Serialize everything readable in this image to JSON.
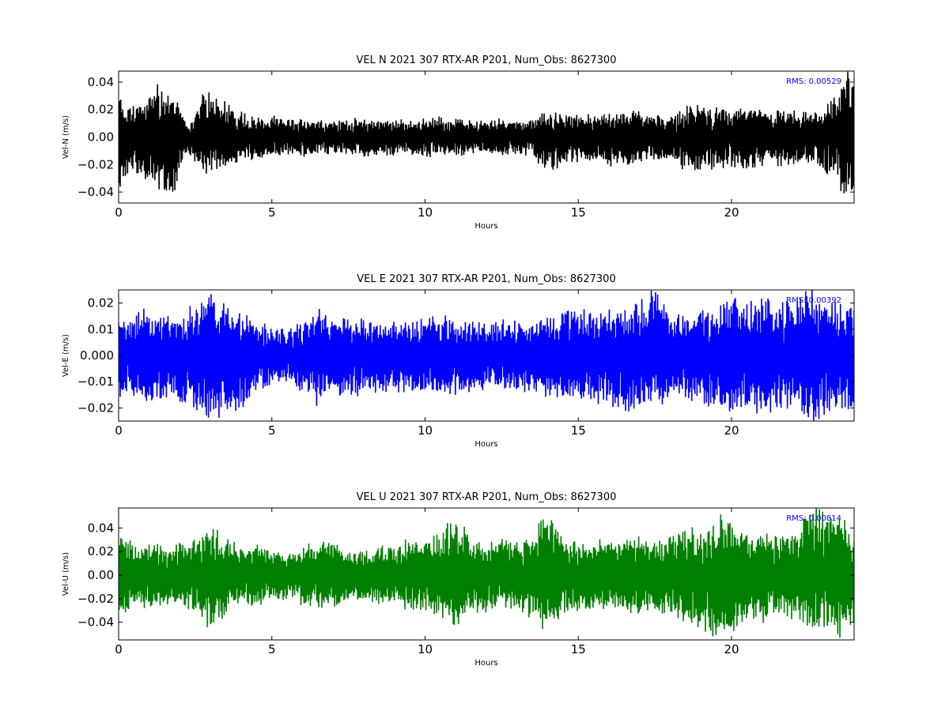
{
  "chart_data": [
    {
      "type": "line",
      "title": "VEL N 2021 307 RTX-AR  P201, Num_Obs: 8627300",
      "xlabel": "Hours",
      "ylabel": "Vel-N (m/s)",
      "xlim": [
        0,
        24
      ],
      "ylim": [
        -0.048,
        0.048
      ],
      "xticks": [
        0,
        5,
        10,
        15,
        20
      ],
      "xtick_labels": [
        "0",
        "5",
        "10",
        "15",
        "20"
      ],
      "yticks": [
        -0.04,
        -0.02,
        0.0,
        0.02,
        0.04
      ],
      "ytick_labels": [
        "−0.04",
        "−0.02",
        "0.00",
        "0.02",
        "0.04"
      ],
      "color": "#000000",
      "annotation": "RMS:  0.00529",
      "annotation_color": "#0000ff",
      "series": [
        {
          "x": [
            0,
            0.25,
            0.5,
            0.75,
            1.0,
            1.25,
            1.5,
            1.75,
            2.0,
            2.25,
            2.5,
            2.75,
            3.0,
            3.25,
            3.5,
            3.75,
            4.0,
            4.25,
            4.5,
            4.75,
            5.0,
            5.5,
            6.0,
            6.5,
            7.0,
            7.5,
            8.0,
            8.5,
            9.0,
            9.5,
            10.0,
            10.5,
            11.0,
            11.5,
            12.0,
            12.5,
            13.0,
            13.5,
            14.0,
            14.5,
            15.0,
            15.5,
            16.0,
            16.5,
            17.0,
            17.5,
            18.0,
            18.5,
            19.0,
            19.5,
            20.0,
            20.5,
            21.0,
            21.5,
            22.0,
            22.5,
            23.0,
            23.25,
            23.5,
            23.75,
            24.0
          ],
          "upper": [
            0.03,
            0.02,
            0.024,
            0.022,
            0.028,
            0.042,
            0.03,
            0.035,
            0.018,
            0.01,
            0.014,
            0.03,
            0.032,
            0.028,
            0.025,
            0.02,
            0.018,
            0.016,
            0.014,
            0.013,
            0.014,
            0.012,
            0.013,
            0.012,
            0.011,
            0.012,
            0.013,
            0.012,
            0.012,
            0.011,
            0.013,
            0.014,
            0.012,
            0.012,
            0.011,
            0.013,
            0.012,
            0.013,
            0.017,
            0.016,
            0.015,
            0.015,
            0.016,
            0.017,
            0.018,
            0.016,
            0.013,
            0.021,
            0.022,
            0.019,
            0.02,
            0.021,
            0.019,
            0.018,
            0.018,
            0.016,
            0.02,
            0.024,
            0.028,
            0.047,
            0.04
          ],
          "lower": [
            -0.035,
            -0.033,
            -0.03,
            -0.026,
            -0.03,
            -0.035,
            -0.037,
            -0.048,
            -0.02,
            -0.012,
            -0.016,
            -0.027,
            -0.025,
            -0.022,
            -0.02,
            -0.018,
            -0.017,
            -0.016,
            -0.016,
            -0.014,
            -0.014,
            -0.013,
            -0.014,
            -0.012,
            -0.012,
            -0.012,
            -0.013,
            -0.013,
            -0.012,
            -0.012,
            -0.014,
            -0.012,
            -0.013,
            -0.012,
            -0.012,
            -0.013,
            -0.012,
            -0.013,
            -0.025,
            -0.019,
            -0.016,
            -0.017,
            -0.02,
            -0.019,
            -0.018,
            -0.017,
            -0.014,
            -0.023,
            -0.022,
            -0.024,
            -0.02,
            -0.023,
            -0.022,
            -0.02,
            -0.02,
            -0.018,
            -0.022,
            -0.028,
            -0.032,
            -0.047,
            -0.038
          ]
        }
      ]
    },
    {
      "type": "line",
      "title": "VEL E 2021 307 RTX-AR  P201, Num_Obs: 8627300",
      "xlabel": "Hours",
      "ylabel": "Vel-E (m/s)",
      "xlim": [
        0,
        24
      ],
      "ylim": [
        -0.025,
        0.025
      ],
      "xticks": [
        0,
        5,
        10,
        15,
        20
      ],
      "xtick_labels": [
        "0",
        "5",
        "10",
        "15",
        "20"
      ],
      "yticks": [
        -0.02,
        -0.01,
        0.0,
        0.01,
        0.02
      ],
      "ytick_labels": [
        "−0.02",
        "−0.01",
        "0.000",
        "0.01",
        "0.02"
      ],
      "color": "#0000ff",
      "annotation": "RMS:  0.00392",
      "annotation_color": "#0000ff",
      "series": [
        {
          "x": [
            0,
            0.5,
            1.0,
            1.5,
            2.0,
            2.5,
            2.75,
            3.0,
            3.5,
            4.0,
            4.5,
            5.0,
            5.5,
            6.0,
            6.5,
            7.0,
            7.5,
            8.0,
            8.5,
            9.0,
            9.5,
            10.0,
            10.5,
            11.0,
            11.5,
            12.0,
            12.5,
            13.0,
            13.5,
            14.0,
            14.5,
            15.0,
            15.5,
            16.0,
            16.5,
            17.0,
            17.5,
            18.0,
            18.5,
            19.0,
            19.5,
            20.0,
            20.5,
            21.0,
            21.5,
            22.0,
            22.5,
            23.0,
            23.5,
            24.0
          ],
          "upper": [
            0.014,
            0.016,
            0.017,
            0.014,
            0.015,
            0.018,
            0.02,
            0.025,
            0.018,
            0.015,
            0.012,
            0.01,
            0.009,
            0.012,
            0.016,
            0.013,
            0.013,
            0.013,
            0.012,
            0.013,
            0.012,
            0.013,
            0.015,
            0.013,
            0.013,
            0.012,
            0.014,
            0.013,
            0.012,
            0.015,
            0.017,
            0.016,
            0.016,
            0.016,
            0.017,
            0.018,
            0.025,
            0.015,
            0.016,
            0.017,
            0.018,
            0.021,
            0.019,
            0.02,
            0.021,
            0.019,
            0.025,
            0.02,
            0.019,
            0.019
          ],
          "lower": [
            -0.016,
            -0.015,
            -0.016,
            -0.017,
            -0.016,
            -0.019,
            -0.021,
            -0.022,
            -0.021,
            -0.019,
            -0.013,
            -0.011,
            -0.01,
            -0.013,
            -0.019,
            -0.015,
            -0.014,
            -0.014,
            -0.013,
            -0.014,
            -0.014,
            -0.015,
            -0.013,
            -0.014,
            -0.014,
            -0.013,
            -0.013,
            -0.013,
            -0.013,
            -0.015,
            -0.016,
            -0.016,
            -0.017,
            -0.018,
            -0.019,
            -0.021,
            -0.019,
            -0.015,
            -0.016,
            -0.018,
            -0.019,
            -0.022,
            -0.02,
            -0.021,
            -0.02,
            -0.019,
            -0.025,
            -0.021,
            -0.02,
            -0.02
          ]
        }
      ]
    },
    {
      "type": "line",
      "title": "VEL U 2021 307 RTX-AR  P201, Num_Obs: 8627300",
      "xlabel": "Hours",
      "ylabel": "Vel-U (m/s)",
      "xlim": [
        0,
        24
      ],
      "ylim": [
        -0.055,
        0.057
      ],
      "xticks": [
        0,
        5,
        10,
        15,
        20
      ],
      "xtick_labels": [
        "0",
        "5",
        "10",
        "15",
        "20"
      ],
      "yticks": [
        -0.04,
        -0.02,
        0.0,
        0.02,
        0.04
      ],
      "ytick_labels": [
        "−0.04",
        "−0.02",
        "0.00",
        "0.02",
        "0.04"
      ],
      "color": "#008000",
      "annotation": "RMS:  0.00814",
      "annotation_color": "#0000ff",
      "series": [
        {
          "x": [
            0,
            0.5,
            1.0,
            1.5,
            2.0,
            2.5,
            3.0,
            3.5,
            4.0,
            4.5,
            5.0,
            5.5,
            6.0,
            6.5,
            7.0,
            7.5,
            8.0,
            8.5,
            9.0,
            9.5,
            10.0,
            10.5,
            11.0,
            11.5,
            12.0,
            12.5,
            13.0,
            13.5,
            14.0,
            14.5,
            15.0,
            15.5,
            16.0,
            16.5,
            17.0,
            17.5,
            18.0,
            18.5,
            19.0,
            19.5,
            20.0,
            20.5,
            21.0,
            21.5,
            22.0,
            22.5,
            23.0,
            23.5,
            24.0
          ],
          "upper": [
            0.036,
            0.025,
            0.024,
            0.023,
            0.024,
            0.03,
            0.04,
            0.03,
            0.022,
            0.024,
            0.02,
            0.018,
            0.024,
            0.025,
            0.026,
            0.02,
            0.022,
            0.025,
            0.024,
            0.028,
            0.034,
            0.035,
            0.048,
            0.03,
            0.028,
            0.028,
            0.03,
            0.034,
            0.056,
            0.03,
            0.026,
            0.026,
            0.027,
            0.028,
            0.03,
            0.026,
            0.029,
            0.04,
            0.038,
            0.05,
            0.044,
            0.032,
            0.034,
            0.032,
            0.03,
            0.05,
            0.055,
            0.048,
            0.04
          ],
          "lower": [
            -0.036,
            -0.026,
            -0.026,
            -0.024,
            -0.025,
            -0.03,
            -0.047,
            -0.032,
            -0.026,
            -0.024,
            -0.022,
            -0.018,
            -0.025,
            -0.026,
            -0.026,
            -0.022,
            -0.023,
            -0.024,
            -0.025,
            -0.027,
            -0.034,
            -0.032,
            -0.045,
            -0.03,
            -0.03,
            -0.03,
            -0.03,
            -0.034,
            -0.045,
            -0.03,
            -0.03,
            -0.028,
            -0.03,
            -0.03,
            -0.03,
            -0.03,
            -0.035,
            -0.038,
            -0.045,
            -0.052,
            -0.045,
            -0.034,
            -0.036,
            -0.032,
            -0.036,
            -0.04,
            -0.055,
            -0.05,
            -0.045
          ]
        }
      ]
    }
  ]
}
